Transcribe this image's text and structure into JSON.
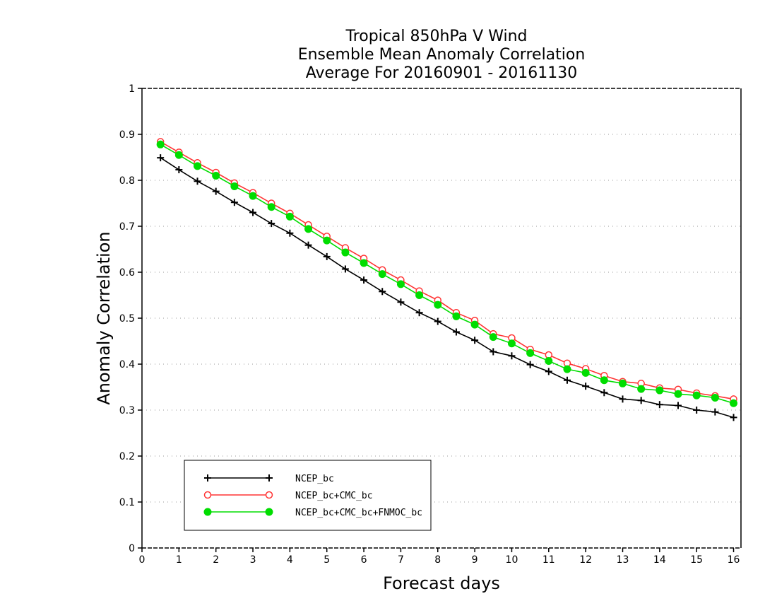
{
  "chart_data": {
    "type": "line",
    "title_lines": [
      "Tropical 850hPa V Wind",
      "Ensemble Mean Anomaly Correlation",
      "Average For 20160901 - 20161130"
    ],
    "xlabel": "Forecast days",
    "ylabel": "Anomaly Correlation",
    "xlim": [
      0,
      16.2
    ],
    "ylim": [
      0,
      1
    ],
    "xticks": [
      "0",
      "1",
      "2",
      "3",
      "4",
      "5",
      "6",
      "7",
      "8",
      "9",
      "10",
      "11",
      "12",
      "13",
      "14",
      "15",
      "16"
    ],
    "yticks": [
      "0",
      "0.1",
      "0.2",
      "0.3",
      "0.4",
      "0.5",
      "0.6",
      "0.7",
      "0.8",
      "0.9",
      "1"
    ],
    "grid": true,
    "legend_position": "bottom-left",
    "x": [
      0.5,
      1,
      1.5,
      2,
      2.5,
      3,
      3.5,
      4,
      4.5,
      5,
      5.5,
      6,
      6.5,
      7,
      7.5,
      8,
      8.5,
      9,
      9.5,
      10,
      10.5,
      11,
      11.5,
      12,
      12.5,
      13,
      13.5,
      14,
      14.5,
      15,
      15.5,
      16
    ],
    "series": [
      {
        "name": "NCEP_bc",
        "color": "#000000",
        "marker": "plus",
        "values": [
          0.849,
          0.823,
          0.798,
          0.776,
          0.752,
          0.73,
          0.706,
          0.685,
          0.659,
          0.634,
          0.607,
          0.583,
          0.558,
          0.535,
          0.512,
          0.493,
          0.47,
          0.452,
          0.427,
          0.418,
          0.399,
          0.384,
          0.365,
          0.352,
          0.338,
          0.324,
          0.321,
          0.312,
          0.31,
          0.3,
          0.296,
          0.284
        ]
      },
      {
        "name": "NCEP_bc+CMC_bc",
        "color": "#ff3333",
        "marker": "open-circle",
        "values": [
          0.884,
          0.861,
          0.838,
          0.817,
          0.794,
          0.773,
          0.75,
          0.728,
          0.703,
          0.678,
          0.653,
          0.63,
          0.605,
          0.583,
          0.559,
          0.539,
          0.512,
          0.495,
          0.466,
          0.457,
          0.432,
          0.42,
          0.402,
          0.39,
          0.375,
          0.362,
          0.358,
          0.348,
          0.345,
          0.337,
          0.331,
          0.324
        ]
      },
      {
        "name": "NCEP_bc+CMC_bc+FNMOC_bc",
        "color": "#00dd00",
        "marker": "filled-circle",
        "values": [
          0.878,
          0.855,
          0.831,
          0.81,
          0.787,
          0.766,
          0.742,
          0.721,
          0.694,
          0.669,
          0.643,
          0.62,
          0.596,
          0.574,
          0.55,
          0.529,
          0.504,
          0.486,
          0.459,
          0.445,
          0.424,
          0.407,
          0.389,
          0.381,
          0.365,
          0.358,
          0.346,
          0.343,
          0.335,
          0.332,
          0.327,
          0.315
        ]
      }
    ]
  }
}
